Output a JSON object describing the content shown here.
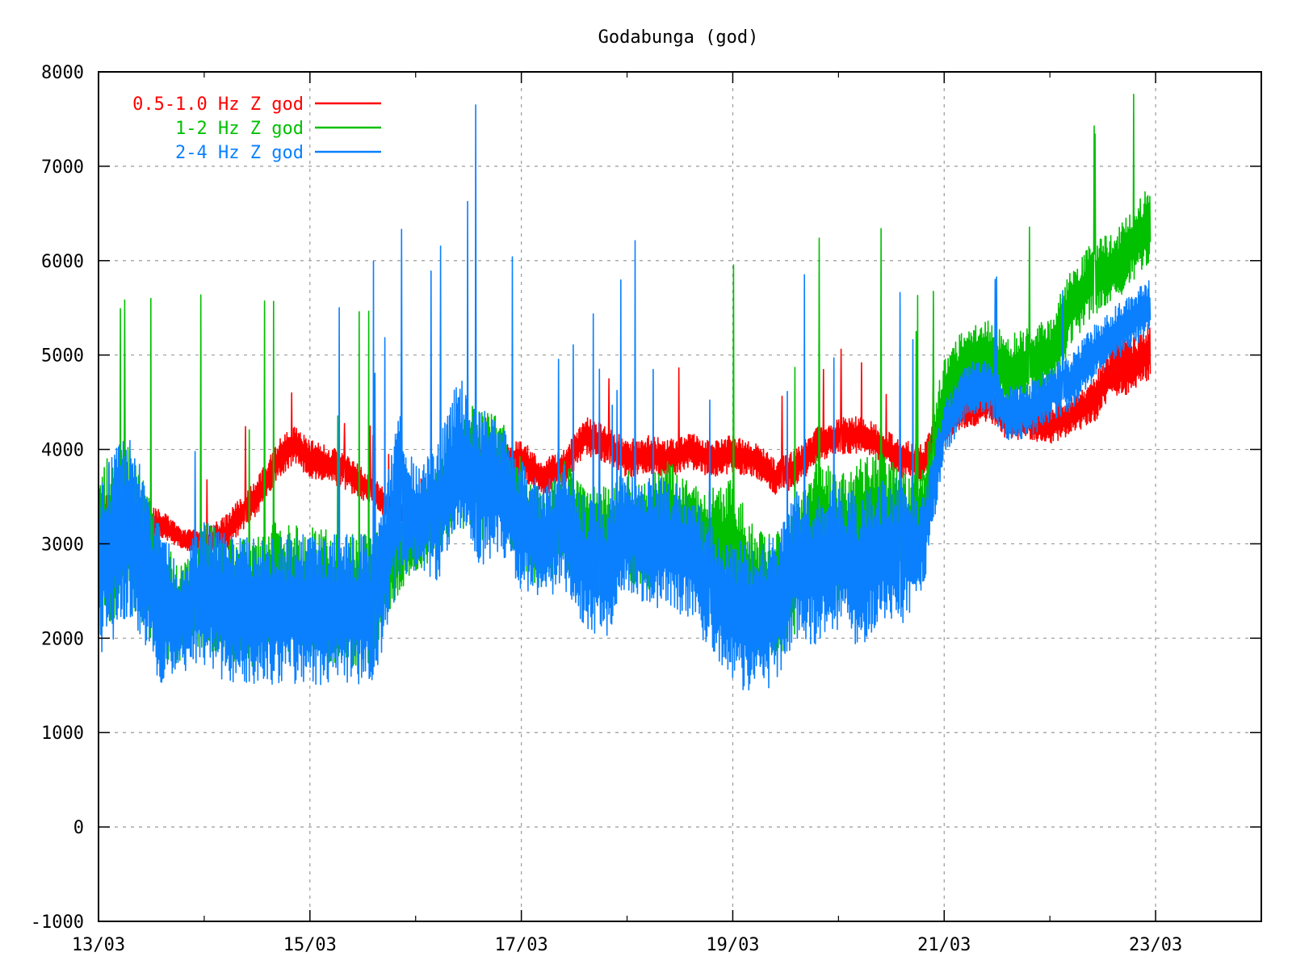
{
  "chart_data": {
    "type": "line",
    "title": "Godabunga (god)",
    "xlabel": "",
    "ylabel": "",
    "ylim": [
      -1000,
      8000
    ],
    "xlim": [
      "13/03",
      "24/03"
    ],
    "yticks": [
      -1000,
      0,
      1000,
      2000,
      3000,
      4000,
      5000,
      6000,
      7000,
      8000
    ],
    "xticks": [
      {
        "day": 0,
        "label": "13/03"
      },
      {
        "day": 2,
        "label": "15/03"
      },
      {
        "day": 4,
        "label": "17/03"
      },
      {
        "day": 6,
        "label": "19/03"
      },
      {
        "day": 8,
        "label": "21/03"
      },
      {
        "day": 10,
        "label": "23/03"
      }
    ],
    "grid": true,
    "legend_position": "top-left",
    "series": [
      {
        "name": "0.5-1.0 Hz Z god",
        "color": "#ff0000",
        "x": [
          0,
          0.3,
          0.6,
          0.8,
          1.0,
          1.2,
          1.5,
          1.7,
          1.85,
          2.0,
          2.3,
          2.6,
          2.85,
          3.0,
          3.2,
          3.4,
          3.6,
          3.8,
          4.0,
          4.2,
          4.4,
          4.6,
          4.8,
          5.0,
          5.2,
          5.4,
          5.6,
          5.8,
          6.0,
          6.2,
          6.4,
          6.6,
          6.8,
          7.0,
          7.2,
          7.4,
          7.6,
          7.8,
          8.0,
          8.2,
          8.4,
          8.6,
          8.8,
          9.0,
          9.2,
          9.4,
          9.6,
          9.8,
          9.95
        ],
        "y": [
          3300,
          3300,
          3200,
          3050,
          3000,
          3100,
          3500,
          3900,
          4050,
          3900,
          3800,
          3550,
          3300,
          3200,
          3400,
          3650,
          3900,
          3850,
          3900,
          3700,
          3800,
          4150,
          4050,
          3900,
          3950,
          3900,
          4000,
          3900,
          3950,
          3900,
          3700,
          3800,
          4050,
          4150,
          4150,
          4050,
          3900,
          3850,
          4300,
          4400,
          4500,
          4300,
          4300,
          4250,
          4350,
          4500,
          4850,
          4900,
          5050
        ],
        "noise": [
          250,
          200,
          150,
          100,
          150,
          200,
          200,
          200,
          200,
          200,
          200,
          150,
          150,
          100,
          150,
          150,
          200,
          200,
          200,
          200,
          200,
          200,
          200,
          200,
          200,
          200,
          200,
          200,
          200,
          200,
          200,
          200,
          200,
          200,
          200,
          200,
          200,
          200,
          200,
          200,
          200,
          200,
          200,
          200,
          200,
          250,
          300,
          300,
          300
        ]
      },
      {
        "name": "1-2 Hz Z god",
        "color": "#00c000",
        "x": [
          0,
          0.3,
          0.6,
          0.8,
          1.0,
          1.2,
          1.5,
          1.7,
          1.85,
          2.0,
          2.3,
          2.6,
          2.85,
          3.0,
          3.2,
          3.4,
          3.6,
          3.8,
          4.0,
          4.2,
          4.4,
          4.6,
          4.8,
          5.0,
          5.2,
          5.4,
          5.6,
          5.8,
          6.0,
          6.2,
          6.4,
          6.6,
          6.8,
          7.0,
          7.2,
          7.4,
          7.6,
          7.8,
          8.0,
          8.2,
          8.4,
          8.6,
          8.8,
          9.0,
          9.2,
          9.4,
          9.6,
          9.8,
          9.95
        ],
        "y": [
          3000,
          3200,
          2400,
          2250,
          2600,
          2400,
          2400,
          2600,
          2500,
          2500,
          2400,
          2400,
          3000,
          3100,
          3300,
          3900,
          3700,
          3800,
          3300,
          3000,
          3300,
          3100,
          3000,
          3200,
          3100,
          3300,
          3100,
          3000,
          3000,
          2500,
          2400,
          2700,
          3300,
          3000,
          3200,
          3300,
          3100,
          3300,
          4600,
          4900,
          5000,
          4800,
          4900,
          5000,
          5500,
          5800,
          5900,
          6200,
          6400
        ],
        "noise": [
          900,
          900,
          700,
          500,
          700,
          700,
          700,
          700,
          700,
          700,
          700,
          700,
          500,
          400,
          500,
          700,
          700,
          600,
          600,
          500,
          600,
          600,
          600,
          600,
          600,
          600,
          600,
          600,
          700,
          700,
          700,
          700,
          700,
          700,
          700,
          700,
          700,
          500,
          400,
          400,
          400,
          400,
          400,
          400,
          400,
          400,
          400,
          400,
          400
        ]
      },
      {
        "name": "2-4 Hz Z god",
        "color": "#0a80ff",
        "x": [
          0,
          0.3,
          0.6,
          0.8,
          1.0,
          1.2,
          1.5,
          1.7,
          1.85,
          2.0,
          2.3,
          2.6,
          2.85,
          3.0,
          3.2,
          3.4,
          3.6,
          3.8,
          4.0,
          4.2,
          4.4,
          4.6,
          4.8,
          5.0,
          5.2,
          5.4,
          5.6,
          5.8,
          6.0,
          6.2,
          6.4,
          6.6,
          6.8,
          7.0,
          7.2,
          7.4,
          7.6,
          7.8,
          8.0,
          8.2,
          8.4,
          8.6,
          8.8,
          9.0,
          9.2,
          9.4,
          9.6,
          9.8,
          9.95
        ],
        "y": [
          2800,
          3200,
          2300,
          2250,
          2500,
          2300,
          2300,
          2300,
          2300,
          2300,
          2300,
          2300,
          3500,
          3300,
          3300,
          3900,
          3600,
          3600,
          3200,
          3000,
          3200,
          2800,
          2700,
          3200,
          3000,
          3000,
          2900,
          2500,
          2300,
          2200,
          2300,
          2800,
          2700,
          2900,
          2700,
          2900,
          2900,
          3000,
          4200,
          4600,
          4700,
          4400,
          4400,
          4600,
          4700,
          5000,
          5200,
          5400,
          5500
        ],
        "noise": [
          1000,
          1000,
          800,
          600,
          800,
          800,
          800,
          800,
          800,
          800,
          800,
          800,
          900,
          600,
          700,
          900,
          900,
          700,
          700,
          600,
          700,
          700,
          700,
          700,
          700,
          700,
          700,
          700,
          800,
          800,
          800,
          800,
          800,
          800,
          800,
          800,
          800,
          500,
          300,
          300,
          300,
          300,
          300,
          300,
          300,
          300,
          300,
          300,
          300
        ]
      }
    ]
  }
}
